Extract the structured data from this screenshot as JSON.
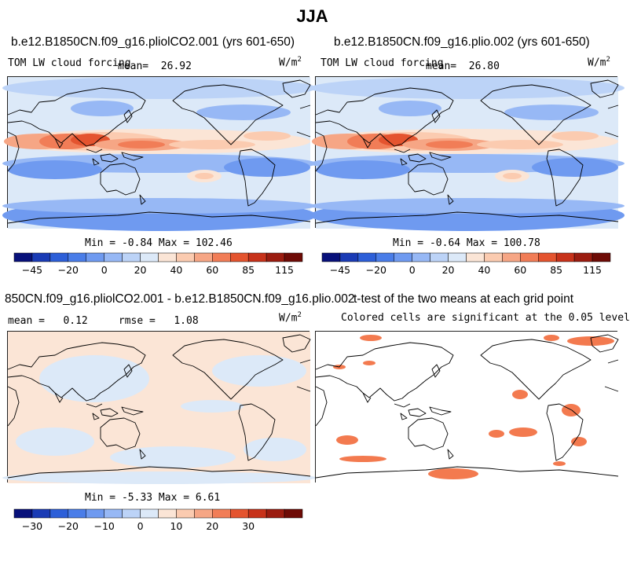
{
  "figure_title": "JJA",
  "panels": [
    {
      "title": "b.e12.B1850CN.f09_g16.pliolCO2.001 (yrs 601-650)",
      "variable": "TOM LW cloud forcing",
      "stat_label": "mean=",
      "stat_value": "26.92",
      "units": "W/m",
      "units_exp": "2",
      "minmax_text": "Min =  -0.84 Max = 102.46",
      "colorbar_ticks": [
        "-45",
        "-20",
        "0",
        "20",
        "40",
        "60",
        "85",
        "115"
      ]
    },
    {
      "title": "b.e12.B1850CN.f09_g16.plio.002 (yrs 601-650)",
      "variable": "TOM LW cloud forcing",
      "stat_label": "mean=",
      "stat_value": "26.80",
      "units": "W/m",
      "units_exp": "2",
      "minmax_text": "Min =  -0.64 Max = 100.78",
      "colorbar_ticks": [
        "-45",
        "-20",
        "0",
        "20",
        "40",
        "60",
        "85",
        "115"
      ]
    },
    {
      "title": "850CN.f09_g16.pliolCO2.001 - b.e12.B1850CN.f09_g16.plio.002",
      "stat_label": "mean =",
      "stat_value": "0.12",
      "rmse_label": "rmse =",
      "rmse_value": "1.08",
      "units": "W/m",
      "units_exp": "2",
      "minmax_text": "Min =  -5.33 Max =   6.61",
      "colorbar_ticks": [
        "-30",
        "-20",
        "-10",
        "0",
        "10",
        "20",
        "30"
      ]
    },
    {
      "title": "t-test of the two means at each grid point",
      "subtitle": "Colored cells are significant at the 0.05 level"
    }
  ],
  "colors": {
    "colorbar": [
      "#08117a",
      "#1a3bb5",
      "#2d5fd8",
      "#4a7de8",
      "#6f9af0",
      "#97b8f5",
      "#bcd3f7",
      "#dce9f8",
      "#fbe5d6",
      "#fbcbb0",
      "#f6a685",
      "#f17d57",
      "#e4542f",
      "#c7321a",
      "#9b1c10",
      "#6e0b06"
    ],
    "significant": "#f37a4f",
    "coast": "#000000"
  },
  "chart_data": [
    {
      "type": "heatmap",
      "title": "b.e12.B1850CN.f09_g16.pliolCO2.001 (yrs 601-650)",
      "variable": "TOM LW cloud forcing",
      "units": "W/m^2",
      "mean": 26.92,
      "min": -0.84,
      "max": 102.46,
      "colorbar_ticks": [
        -45,
        -20,
        0,
        20,
        40,
        60,
        85,
        115
      ]
    },
    {
      "type": "heatmap",
      "title": "b.e12.B1850CN.f09_g16.plio.002 (yrs 601-650)",
      "variable": "TOM LW cloud forcing",
      "units": "W/m^2",
      "mean": 26.8,
      "min": -0.64,
      "max": 100.78,
      "colorbar_ticks": [
        -45,
        -20,
        0,
        20,
        40,
        60,
        85,
        115
      ]
    },
    {
      "type": "heatmap",
      "title": "850CN.f09_g16.pliolCO2.001 - b.e12.B1850CN.f09_g16.plio.002",
      "units": "W/m^2",
      "mean": 0.12,
      "rmse": 1.08,
      "min": -5.33,
      "max": 6.61,
      "colorbar_ticks": [
        -30,
        -20,
        -10,
        0,
        10,
        20,
        30
      ]
    },
    {
      "type": "heatmap",
      "title": "t-test of the two means at each grid point",
      "subtitle": "Colored cells are significant at the 0.05 level"
    }
  ]
}
